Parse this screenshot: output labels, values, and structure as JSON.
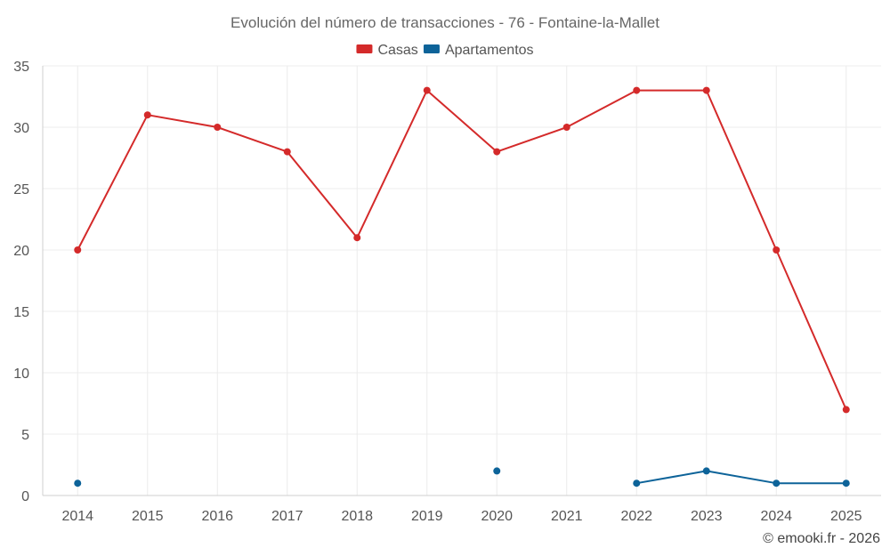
{
  "chart_data": {
    "type": "line",
    "title": "Evolución del número de transacciones - 76 - Fontaine-la-Mallet",
    "categories": [
      "2014",
      "2015",
      "2016",
      "2017",
      "2018",
      "2019",
      "2020",
      "2021",
      "2022",
      "2023",
      "2024",
      "2025"
    ],
    "ylim": [
      0,
      35
    ],
    "yticks": [
      0,
      5,
      10,
      15,
      20,
      25,
      30,
      35
    ],
    "grid": true,
    "legend_position": "top-center",
    "series": [
      {
        "name": "Casas",
        "color": "#d42a2a",
        "values": [
          20,
          31,
          30,
          28,
          21,
          33,
          28,
          30,
          33,
          33,
          20,
          7
        ]
      },
      {
        "name": "Apartamentos",
        "color": "#0d6399",
        "values": [
          1,
          null,
          null,
          null,
          null,
          null,
          2,
          null,
          1,
          2,
          1,
          1
        ]
      }
    ]
  },
  "credit": "© emooki.fr - 2026"
}
